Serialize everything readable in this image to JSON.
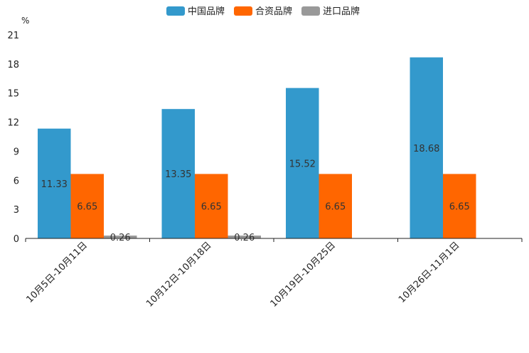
{
  "chart_data": {
    "type": "bar",
    "unit_label": "%",
    "categories": [
      "10月5日-10月11日",
      "10月12日-10月18日",
      "10月19日-10月25日",
      "10月26日-11月1日"
    ],
    "series": [
      {
        "name": "中国品牌",
        "color": "#3399cc",
        "values": [
          11.33,
          13.35,
          15.52,
          18.68
        ],
        "labels": [
          "11.33",
          "13.35",
          "15.52",
          "18.68"
        ]
      },
      {
        "name": "合资品牌",
        "color": "#ff6600",
        "values": [
          6.65,
          6.65,
          6.65,
          6.65
        ],
        "labels": [
          "6.65",
          "6.65",
          "6.65",
          "6.65"
        ]
      },
      {
        "name": "进口品牌",
        "color": "#999999",
        "values": [
          0.26,
          0.26,
          null,
          null
        ],
        "labels": [
          "0.26",
          "0.26",
          null,
          null
        ]
      }
    ],
    "yticks": [
      "0",
      "3",
      "6",
      "9",
      "12",
      "15",
      "18",
      "21"
    ],
    "ylim": [
      0,
      21
    ],
    "legend_position": "top-center",
    "grid": false
  }
}
